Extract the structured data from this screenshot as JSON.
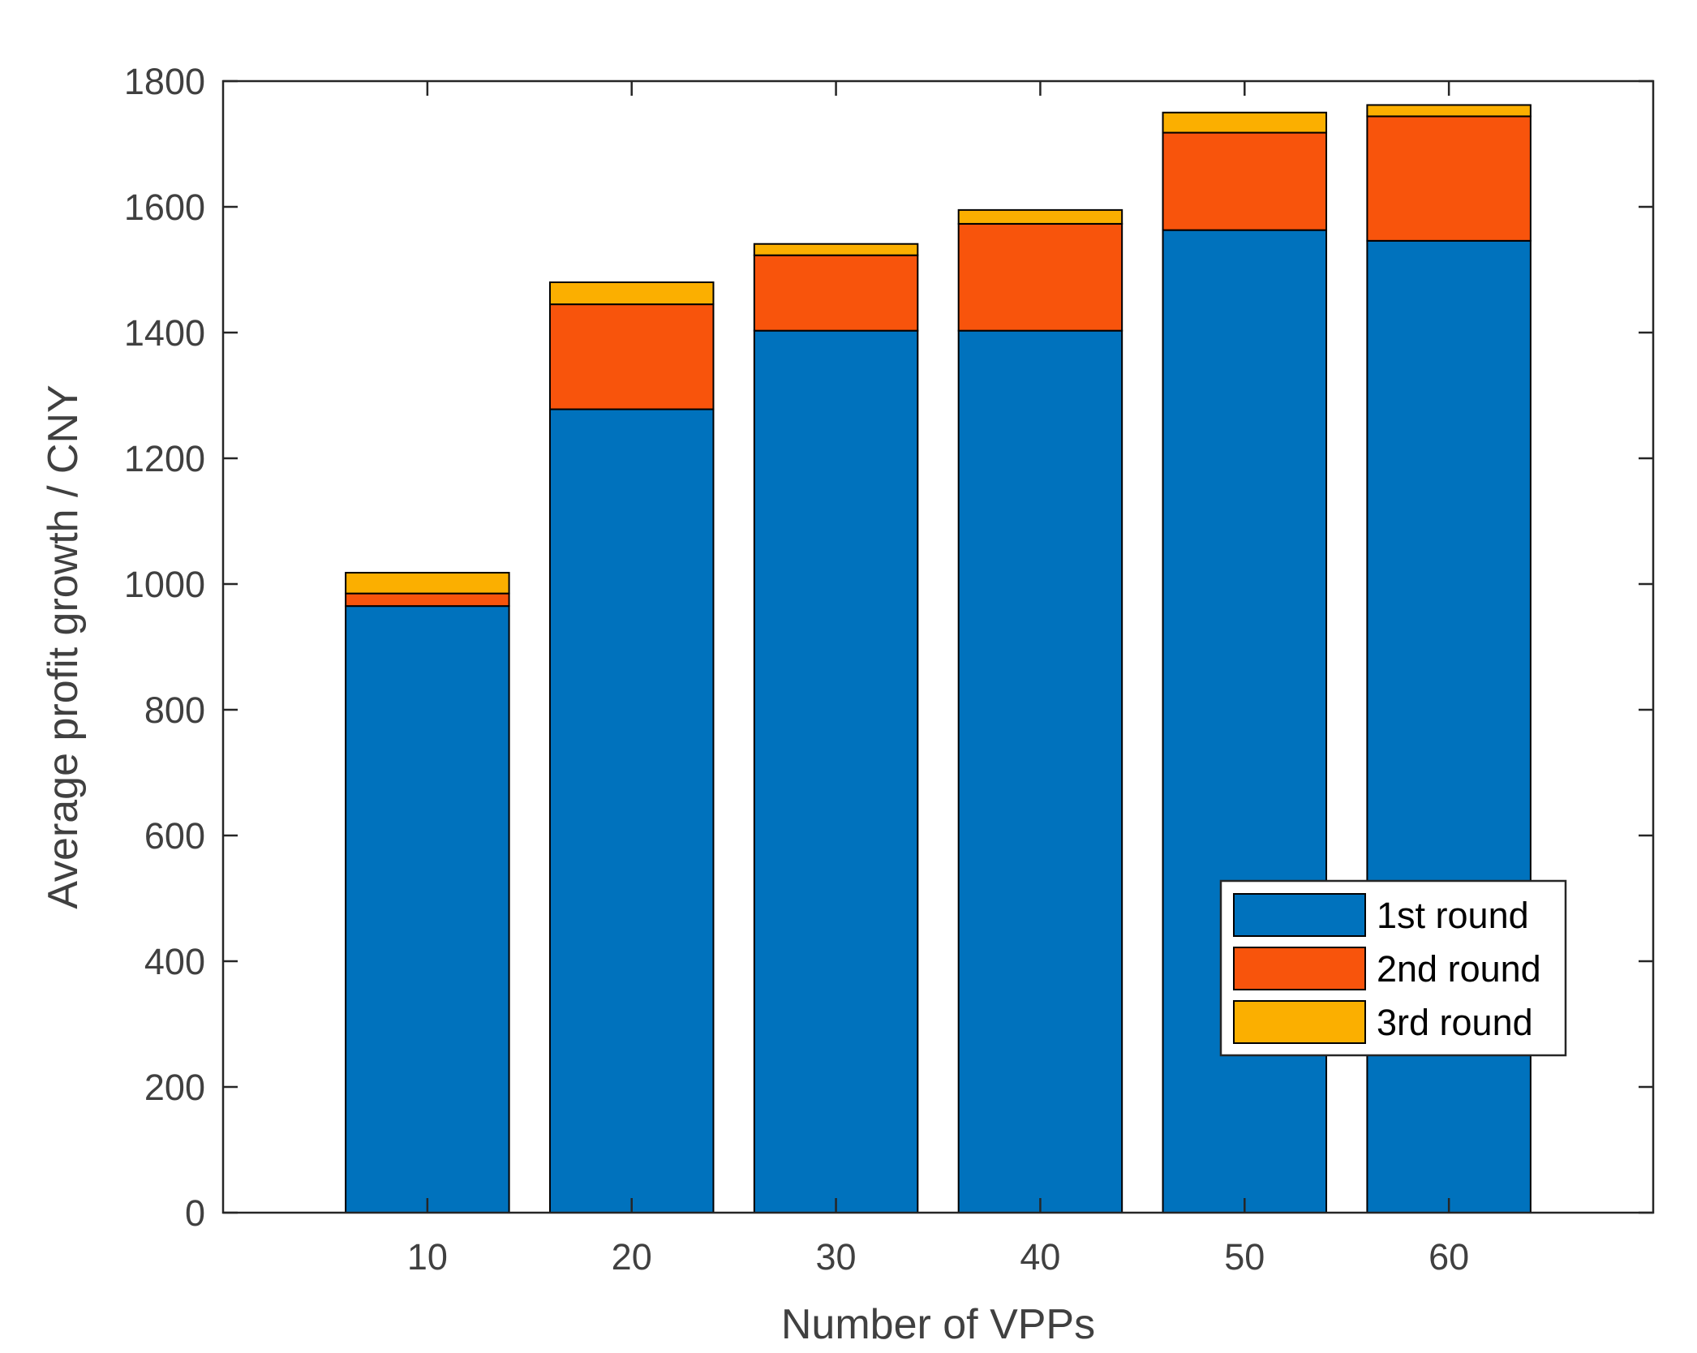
{
  "chart_data": {
    "type": "bar",
    "stacked": true,
    "title": "",
    "xlabel": "Number of VPPs",
    "ylabel": "Average profit growth / CNY",
    "categories": [
      "10",
      "20",
      "30",
      "40",
      "50",
      "60"
    ],
    "xlim": [
      0,
      70
    ],
    "x": [
      10,
      20,
      30,
      40,
      50,
      60
    ],
    "ylim": [
      0,
      1800
    ],
    "yticks": [
      0,
      200,
      400,
      600,
      800,
      1000,
      1200,
      1400,
      1600,
      1800
    ],
    "yticklabels": [
      "0",
      "200",
      "400",
      "600",
      "800",
      "1000",
      "1200",
      "1400",
      "1600",
      "1800"
    ],
    "grid": false,
    "legend_position": "bottom-right",
    "series": [
      {
        "name": "1st round",
        "color": "#0072BD",
        "values": [
          965,
          1278,
          1403,
          1403,
          1563,
          1546
        ]
      },
      {
        "name": "2nd round",
        "color": "#F8540C",
        "values": [
          20,
          167,
          120,
          170,
          155,
          198
        ]
      },
      {
        "name": "3rd round",
        "color": "#FBAF00",
        "values": [
          33,
          35,
          18,
          22,
          32,
          18
        ]
      }
    ]
  }
}
